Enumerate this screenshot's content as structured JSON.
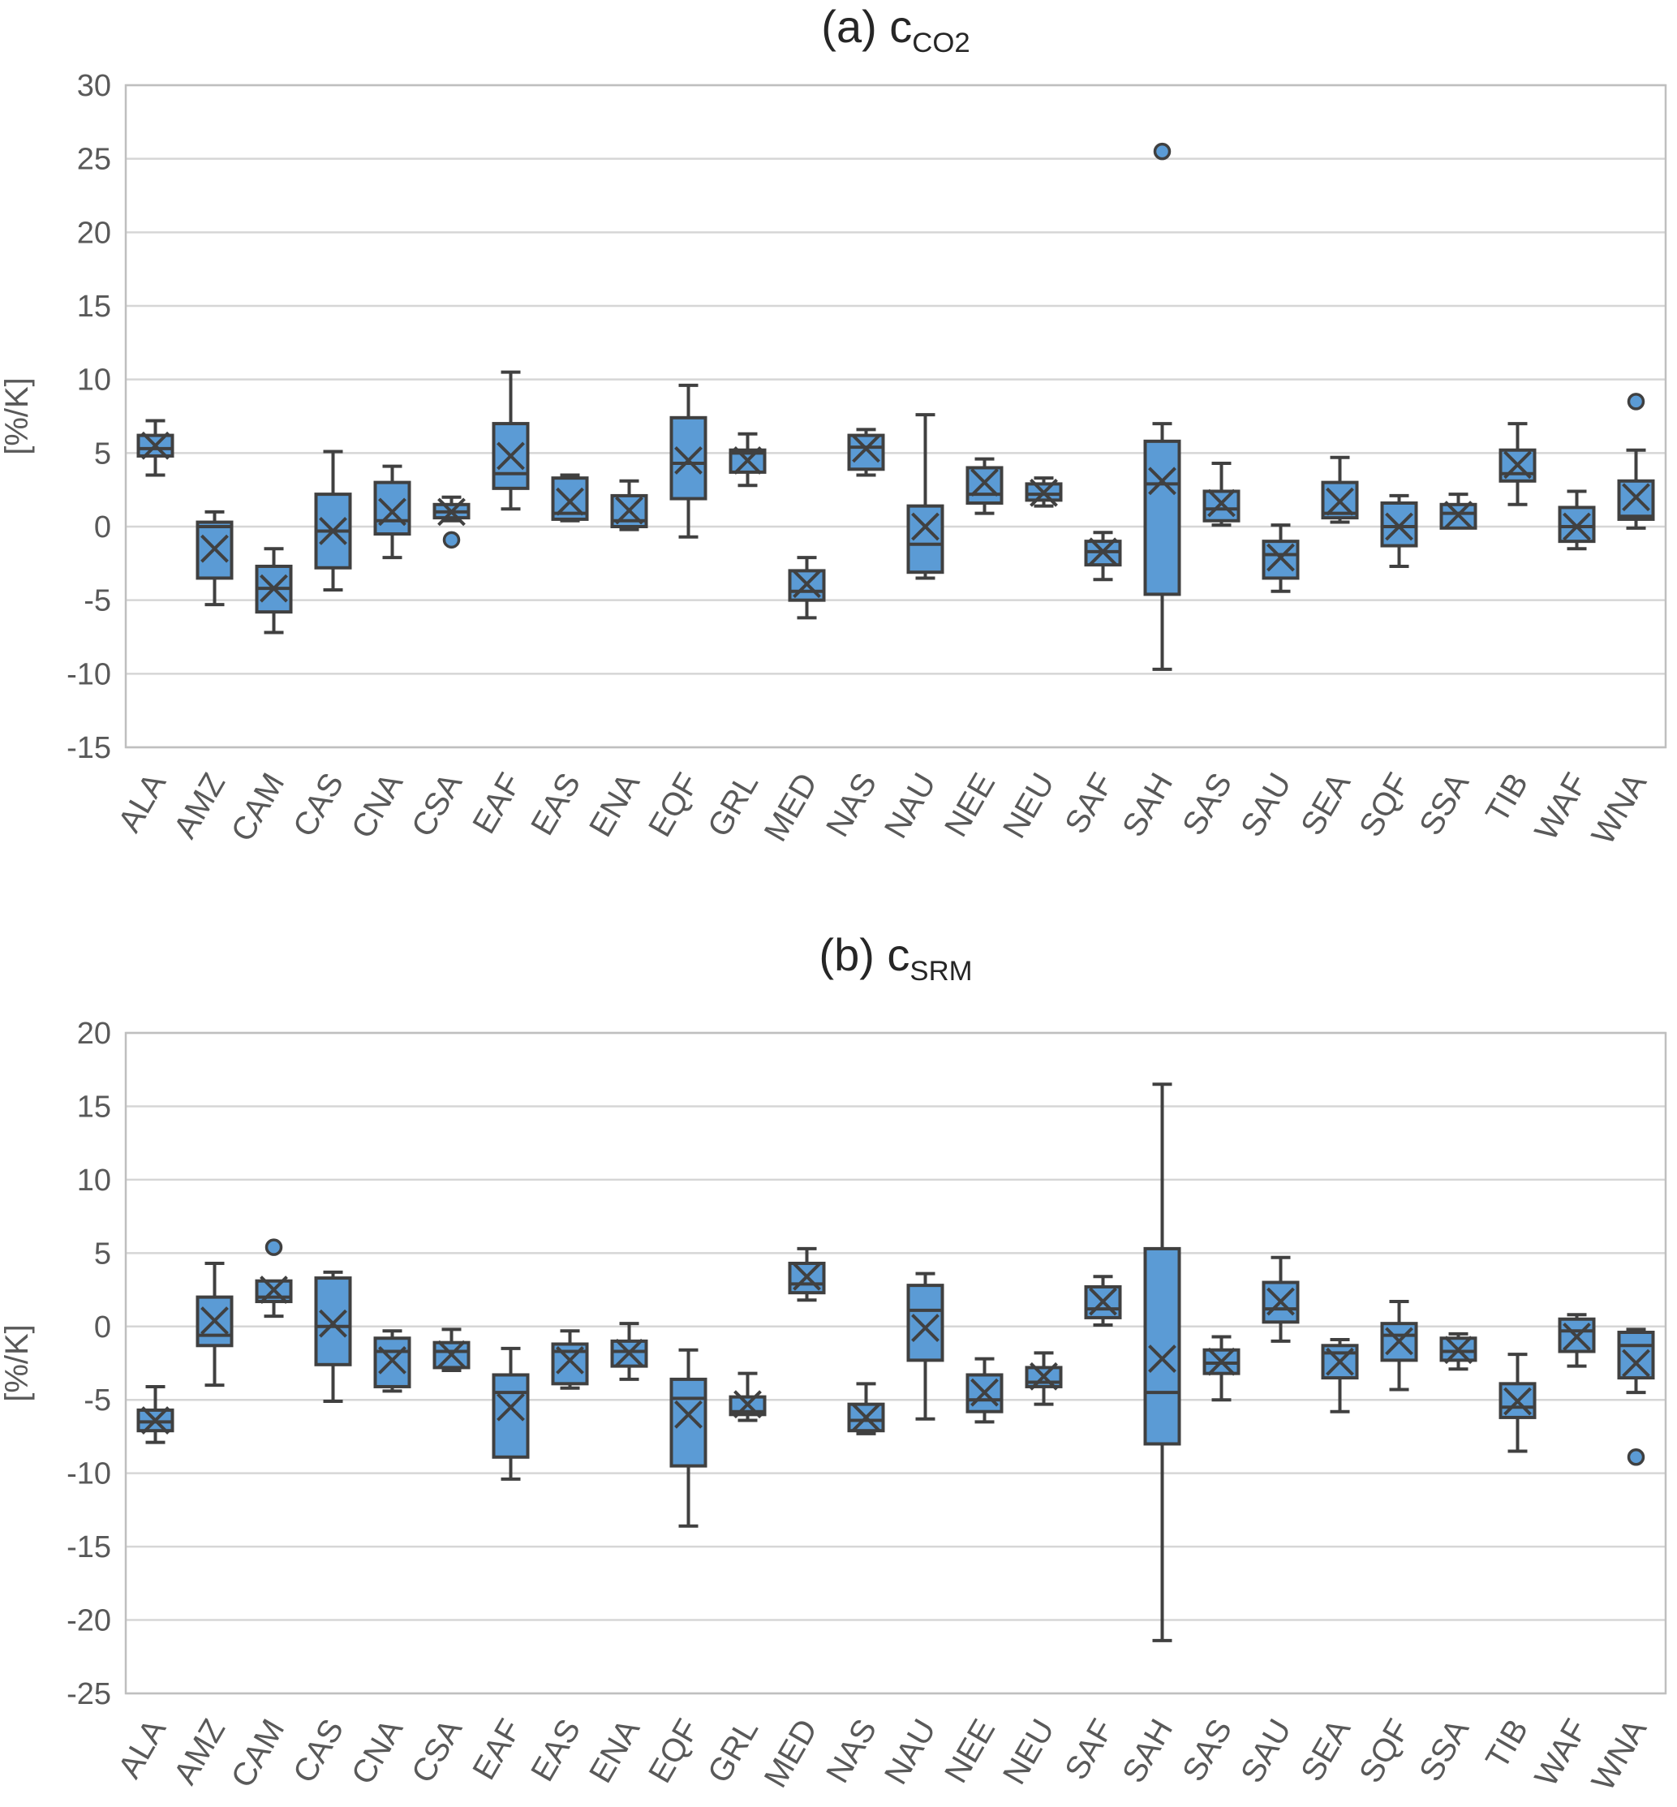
{
  "figure": {
    "panel_a_title_prefix": "(a) c",
    "panel_a_title_sub": "CO2",
    "panel_b_title_prefix": "(b) c",
    "panel_b_title_sub": "SRM"
  },
  "colors": {
    "box_fill": "#5B9BD5",
    "box_stroke": "#404040",
    "gridline": "#D6D6D6",
    "plot_border": "#BFBFBF",
    "axis_text": "#595959",
    "title_text": "#262626"
  },
  "chart_data": [
    {
      "type": "box",
      "panel": "a",
      "title_prefix": "(a) c",
      "title_sub": "CO2",
      "ylabel": "[%/K]",
      "axis": {
        "ymin": -15,
        "ymax": 30,
        "step": 5,
        "grid": true
      },
      "categories": [
        "ALA",
        "AMZ",
        "CAM",
        "CAS",
        "CNA",
        "CSA",
        "EAF",
        "EAS",
        "ENA",
        "EQF",
        "GRL",
        "MED",
        "NAS",
        "NAU",
        "NEE",
        "NEU",
        "SAF",
        "SAH",
        "SAS",
        "SAU",
        "SEA",
        "SQF",
        "SSA",
        "TIB",
        "WAF",
        "WNA"
      ],
      "boxes": [
        {
          "region": "ALA",
          "whisker_low": 3.5,
          "q1": 4.8,
          "median": 5.3,
          "q3": 6.2,
          "whisker_high": 7.2,
          "mean": 5.5,
          "outliers": []
        },
        {
          "region": "AMZ",
          "whisker_low": -5.3,
          "q1": -3.5,
          "median": 0.0,
          "q3": 0.3,
          "whisker_high": 1.0,
          "mean": -1.5,
          "outliers": []
        },
        {
          "region": "CAM",
          "whisker_low": -7.2,
          "q1": -5.8,
          "median": -4.2,
          "q3": -2.7,
          "whisker_high": -1.5,
          "mean": -4.2,
          "outliers": []
        },
        {
          "region": "CAS",
          "whisker_low": -4.3,
          "q1": -2.8,
          "median": -0.3,
          "q3": 2.2,
          "whisker_high": 5.1,
          "mean": -0.3,
          "outliers": []
        },
        {
          "region": "CNA",
          "whisker_low": -2.1,
          "q1": -0.5,
          "median": 0.4,
          "q3": 3.0,
          "whisker_high": 4.1,
          "mean": 1.0,
          "outliers": []
        },
        {
          "region": "CSA",
          "whisker_low": 0.4,
          "q1": 0.6,
          "median": 1.0,
          "q3": 1.5,
          "whisker_high": 2.0,
          "mean": 1.0,
          "outliers": [
            -0.9
          ]
        },
        {
          "region": "EAF",
          "whisker_low": 1.2,
          "q1": 2.6,
          "median": 3.6,
          "q3": 7.0,
          "whisker_high": 10.5,
          "mean": 4.8,
          "outliers": []
        },
        {
          "region": "EAS",
          "whisker_low": 0.4,
          "q1": 0.5,
          "median": 0.9,
          "q3": 3.3,
          "whisker_high": 3.5,
          "mean": 1.7,
          "outliers": []
        },
        {
          "region": "ENA",
          "whisker_low": -0.2,
          "q1": 0.0,
          "median": 0.4,
          "q3": 2.1,
          "whisker_high": 3.1,
          "mean": 1.1,
          "outliers": []
        },
        {
          "region": "EQF",
          "whisker_low": -0.7,
          "q1": 1.9,
          "median": 4.3,
          "q3": 7.4,
          "whisker_high": 9.6,
          "mean": 4.5,
          "outliers": []
        },
        {
          "region": "GRL",
          "whisker_low": 2.8,
          "q1": 3.7,
          "median": 5.0,
          "q3": 5.2,
          "whisker_high": 6.3,
          "mean": 4.5,
          "outliers": []
        },
        {
          "region": "MED",
          "whisker_low": -6.2,
          "q1": -5.0,
          "median": -4.4,
          "q3": -3.0,
          "whisker_high": -2.1,
          "mean": -3.9,
          "outliers": []
        },
        {
          "region": "NAS",
          "whisker_low": 3.5,
          "q1": 3.9,
          "median": 5.4,
          "q3": 6.2,
          "whisker_high": 6.6,
          "mean": 5.3,
          "outliers": []
        },
        {
          "region": "NAU",
          "whisker_low": -3.5,
          "q1": -3.1,
          "median": -1.2,
          "q3": 1.4,
          "whisker_high": 7.6,
          "mean": 0.0,
          "outliers": []
        },
        {
          "region": "NEE",
          "whisker_low": 0.9,
          "q1": 1.6,
          "median": 2.2,
          "q3": 4.0,
          "whisker_high": 4.6,
          "mean": 3.0,
          "outliers": []
        },
        {
          "region": "NEU",
          "whisker_low": 1.4,
          "q1": 1.8,
          "median": 2.2,
          "q3": 2.9,
          "whisker_high": 3.3,
          "mean": 2.3,
          "outliers": []
        },
        {
          "region": "SAF",
          "whisker_low": -3.6,
          "q1": -2.6,
          "median": -1.7,
          "q3": -1.0,
          "whisker_high": -0.4,
          "mean": -1.7,
          "outliers": []
        },
        {
          "region": "SAH",
          "whisker_low": -9.7,
          "q1": -4.6,
          "median": 2.9,
          "q3": 5.8,
          "whisker_high": 7.0,
          "mean": 3.1,
          "outliers": [
            25.5
          ]
        },
        {
          "region": "SAS",
          "whisker_low": 0.1,
          "q1": 0.4,
          "median": 1.2,
          "q3": 2.4,
          "whisker_high": 4.3,
          "mean": 1.6,
          "outliers": []
        },
        {
          "region": "SAU",
          "whisker_low": -4.4,
          "q1": -3.5,
          "median": -1.9,
          "q3": -1.0,
          "whisker_high": 0.1,
          "mean": -2.1,
          "outliers": []
        },
        {
          "region": "SEA",
          "whisker_low": 0.3,
          "q1": 0.6,
          "median": 0.9,
          "q3": 3.0,
          "whisker_high": 4.7,
          "mean": 1.7,
          "outliers": []
        },
        {
          "region": "SQF",
          "whisker_low": -2.7,
          "q1": -1.3,
          "median": 0.0,
          "q3": 1.6,
          "whisker_high": 2.1,
          "mean": 0.0,
          "outliers": []
        },
        {
          "region": "SSA",
          "whisker_low": -0.1,
          "q1": -0.1,
          "median": 0.9,
          "q3": 1.5,
          "whisker_high": 2.2,
          "mean": 0.8,
          "outliers": []
        },
        {
          "region": "TIB",
          "whisker_low": 1.5,
          "q1": 3.1,
          "median": 3.6,
          "q3": 5.2,
          "whisker_high": 7.0,
          "mean": 4.2,
          "outliers": []
        },
        {
          "region": "WAF",
          "whisker_low": -1.5,
          "q1": -1.0,
          "median": 0.0,
          "q3": 1.3,
          "whisker_high": 2.4,
          "mean": 0.0,
          "outliers": []
        },
        {
          "region": "WNA",
          "whisker_low": -0.1,
          "q1": 0.5,
          "median": 0.7,
          "q3": 3.1,
          "whisker_high": 5.2,
          "mean": 2.0,
          "outliers": [
            8.5
          ]
        }
      ]
    },
    {
      "type": "box",
      "panel": "b",
      "title_prefix": "(b) c",
      "title_sub": "SRM",
      "ylabel": "[%/K]",
      "axis": {
        "ymin": -25,
        "ymax": 20,
        "step": 5,
        "grid": true
      },
      "categories": [
        "ALA",
        "AMZ",
        "CAM",
        "CAS",
        "CNA",
        "CSA",
        "EAF",
        "EAS",
        "ENA",
        "EQF",
        "GRL",
        "MED",
        "NAS",
        "NAU",
        "NEE",
        "NEU",
        "SAF",
        "SAH",
        "SAS",
        "SAU",
        "SEA",
        "SQF",
        "SSA",
        "TIB",
        "WAF",
        "WNA"
      ],
      "boxes": [
        {
          "region": "ALA",
          "whisker_low": -7.9,
          "q1": -7.1,
          "median": -6.5,
          "q3": -5.7,
          "whisker_high": -4.1,
          "mean": -6.4,
          "outliers": []
        },
        {
          "region": "AMZ",
          "whisker_low": -4.0,
          "q1": -1.3,
          "median": -0.6,
          "q3": 2.0,
          "whisker_high": 4.3,
          "mean": 0.4,
          "outliers": []
        },
        {
          "region": "CAM",
          "whisker_low": 0.7,
          "q1": 1.7,
          "median": 2.0,
          "q3": 3.1,
          "whisker_high": 3.1,
          "mean": 2.5,
          "outliers": [
            5.4
          ]
        },
        {
          "region": "CAS",
          "whisker_low": -5.1,
          "q1": -2.6,
          "median": 0.0,
          "q3": 3.3,
          "whisker_high": 3.7,
          "mean": 0.2,
          "outliers": []
        },
        {
          "region": "CNA",
          "whisker_low": -4.4,
          "q1": -4.1,
          "median": -1.7,
          "q3": -0.8,
          "whisker_high": -0.3,
          "mean": -2.3,
          "outliers": []
        },
        {
          "region": "CSA",
          "whisker_low": -3.0,
          "q1": -2.8,
          "median": -1.7,
          "q3": -1.1,
          "whisker_high": -0.2,
          "mean": -1.9,
          "outliers": []
        },
        {
          "region": "EAF",
          "whisker_low": -10.4,
          "q1": -8.9,
          "median": -4.5,
          "q3": -3.3,
          "whisker_high": -1.5,
          "mean": -5.5,
          "outliers": []
        },
        {
          "region": "EAS",
          "whisker_low": -4.2,
          "q1": -3.9,
          "median": -1.7,
          "q3": -1.2,
          "whisker_high": -0.3,
          "mean": -2.3,
          "outliers": []
        },
        {
          "region": "ENA",
          "whisker_low": -3.6,
          "q1": -2.7,
          "median": -1.7,
          "q3": -1.0,
          "whisker_high": 0.2,
          "mean": -1.8,
          "outliers": []
        },
        {
          "region": "EQF",
          "whisker_low": -13.6,
          "q1": -9.5,
          "median": -4.9,
          "q3": -3.6,
          "whisker_high": -1.6,
          "mean": -6.0,
          "outliers": []
        },
        {
          "region": "GRL",
          "whisker_low": -6.4,
          "q1": -6.0,
          "median": -5.8,
          "q3": -4.8,
          "whisker_high": -3.2,
          "mean": -5.3,
          "outliers": []
        },
        {
          "region": "MED",
          "whisker_low": 1.8,
          "q1": 2.3,
          "median": 2.9,
          "q3": 4.3,
          "whisker_high": 5.3,
          "mean": 3.4,
          "outliers": []
        },
        {
          "region": "NAS",
          "whisker_low": -7.3,
          "q1": -7.1,
          "median": -6.4,
          "q3": -5.3,
          "whisker_high": -3.9,
          "mean": -6.2,
          "outliers": []
        },
        {
          "region": "NAU",
          "whisker_low": -6.3,
          "q1": -2.3,
          "median": 1.1,
          "q3": 2.8,
          "whisker_high": 3.6,
          "mean": -0.1,
          "outliers": []
        },
        {
          "region": "NEE",
          "whisker_low": -6.5,
          "q1": -5.8,
          "median": -5.0,
          "q3": -3.3,
          "whisker_high": -2.2,
          "mean": -4.5,
          "outliers": []
        },
        {
          "region": "NEU",
          "whisker_low": -5.3,
          "q1": -4.1,
          "median": -3.8,
          "q3": -2.8,
          "whisker_high": -1.8,
          "mean": -3.4,
          "outliers": []
        },
        {
          "region": "SAF",
          "whisker_low": 0.1,
          "q1": 0.6,
          "median": 1.2,
          "q3": 2.7,
          "whisker_high": 3.4,
          "mean": 1.7,
          "outliers": []
        },
        {
          "region": "SAH",
          "whisker_low": -21.4,
          "q1": -8.0,
          "median": -4.5,
          "q3": 5.3,
          "whisker_high": 16.5,
          "mean": -2.2,
          "outliers": []
        },
        {
          "region": "SAS",
          "whisker_low": -5.0,
          "q1": -3.2,
          "median": -2.5,
          "q3": -1.6,
          "whisker_high": -0.7,
          "mean": -2.4,
          "outliers": []
        },
        {
          "region": "SAU",
          "whisker_low": -1.0,
          "q1": 0.3,
          "median": 1.2,
          "q3": 3.0,
          "whisker_high": 4.7,
          "mean": 1.7,
          "outliers": []
        },
        {
          "region": "SEA",
          "whisker_low": -5.8,
          "q1": -3.5,
          "median": -1.8,
          "q3": -1.3,
          "whisker_high": -0.9,
          "mean": -2.4,
          "outliers": []
        },
        {
          "region": "SQF",
          "whisker_low": -4.3,
          "q1": -2.3,
          "median": -0.6,
          "q3": 0.2,
          "whisker_high": 1.7,
          "mean": -1.0,
          "outliers": []
        },
        {
          "region": "SSA",
          "whisker_low": -2.9,
          "q1": -2.3,
          "median": -1.7,
          "q3": -0.8,
          "whisker_high": -0.5,
          "mean": -1.6,
          "outliers": []
        },
        {
          "region": "TIB",
          "whisker_low": -8.5,
          "q1": -6.2,
          "median": -5.5,
          "q3": -3.9,
          "whisker_high": -1.9,
          "mean": -5.1,
          "outliers": []
        },
        {
          "region": "WAF",
          "whisker_low": -2.7,
          "q1": -1.7,
          "median": -0.3,
          "q3": 0.5,
          "whisker_high": 0.8,
          "mean": -0.7,
          "outliers": []
        },
        {
          "region": "WNA",
          "whisker_low": -4.5,
          "q1": -3.5,
          "median": -1.3,
          "q3": -0.4,
          "whisker_high": -0.2,
          "mean": -2.5,
          "outliers": [
            -8.9
          ]
        }
      ]
    }
  ]
}
